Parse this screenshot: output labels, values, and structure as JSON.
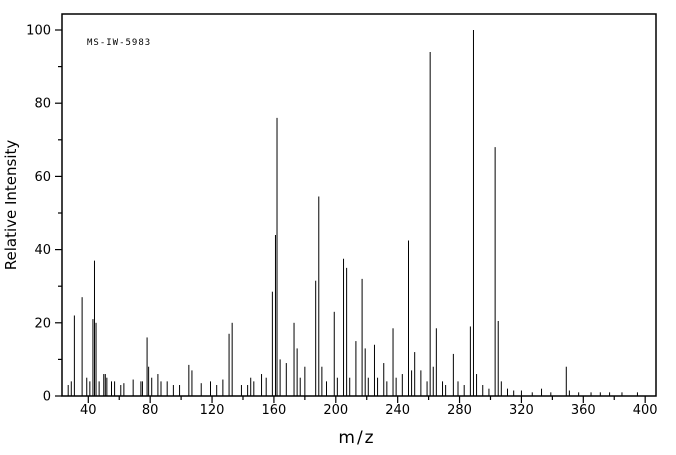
{
  "colors": {
    "stroke": "#000000",
    "background": "#ffffff",
    "text": "#000000"
  },
  "chart_data": {
    "type": "bar",
    "subtype": "mass-spectrum-stick-plot",
    "title": "",
    "spectrum_id": "MS-IW-5983",
    "xlabel": "m/z",
    "ylabel": "Relative Intensity",
    "xlim": [
      23,
      407
    ],
    "ylim": [
      0,
      100
    ],
    "x_major_ticks": [
      40,
      80,
      120,
      160,
      200,
      240,
      280,
      320,
      360,
      400
    ],
    "x_minor_step": 20,
    "y_major_ticks": [
      0,
      20,
      40,
      60,
      80,
      100
    ],
    "y_minor_step": 10,
    "grid": false,
    "legend": false,
    "peaks": [
      [
        27,
        3
      ],
      [
        29,
        4
      ],
      [
        31,
        22
      ],
      [
        36,
        27
      ],
      [
        39,
        5
      ],
      [
        41,
        4
      ],
      [
        43,
        21
      ],
      [
        44,
        37
      ],
      [
        45,
        20
      ],
      [
        47,
        4
      ],
      [
        50,
        6
      ],
      [
        51,
        6
      ],
      [
        52,
        5
      ],
      [
        55,
        4
      ],
      [
        57,
        4
      ],
      [
        61,
        3
      ],
      [
        63,
        3.5
      ],
      [
        69,
        4.5
      ],
      [
        74,
        4
      ],
      [
        75,
        4
      ],
      [
        78,
        16
      ],
      [
        79,
        8
      ],
      [
        81,
        5
      ],
      [
        85,
        6
      ],
      [
        87,
        4
      ],
      [
        91,
        4
      ],
      [
        95,
        3
      ],
      [
        99,
        3
      ],
      [
        105,
        8.5
      ],
      [
        107,
        7
      ],
      [
        113,
        3.5
      ],
      [
        119,
        4
      ],
      [
        123,
        3
      ],
      [
        127,
        4.5
      ],
      [
        131,
        17
      ],
      [
        133,
        20
      ],
      [
        139,
        3
      ],
      [
        143,
        3
      ],
      [
        145,
        5
      ],
      [
        147,
        4
      ],
      [
        152,
        6
      ],
      [
        155,
        5
      ],
      [
        159,
        28.5
      ],
      [
        161,
        44
      ],
      [
        162,
        76
      ],
      [
        164,
        10
      ],
      [
        168,
        9
      ],
      [
        173,
        20
      ],
      [
        175,
        13
      ],
      [
        177,
        5
      ],
      [
        180,
        8
      ],
      [
        187,
        31.5
      ],
      [
        189,
        54.5
      ],
      [
        191,
        8
      ],
      [
        194,
        4
      ],
      [
        199,
        23
      ],
      [
        201,
        5
      ],
      [
        205,
        37.5
      ],
      [
        207,
        35
      ],
      [
        209,
        5
      ],
      [
        213,
        15
      ],
      [
        217,
        32
      ],
      [
        219,
        13
      ],
      [
        221,
        5
      ],
      [
        225,
        14
      ],
      [
        227,
        5
      ],
      [
        231,
        9
      ],
      [
        233,
        4
      ],
      [
        237,
        18.5
      ],
      [
        239,
        5
      ],
      [
        243,
        6
      ],
      [
        247,
        42.5
      ],
      [
        249,
        7
      ],
      [
        251,
        12
      ],
      [
        255,
        7
      ],
      [
        259,
        4
      ],
      [
        261,
        94
      ],
      [
        263,
        8
      ],
      [
        265,
        18.5
      ],
      [
        269,
        4
      ],
      [
        271,
        3
      ],
      [
        276,
        11.5
      ],
      [
        279,
        4
      ],
      [
        283,
        3
      ],
      [
        287,
        19
      ],
      [
        289,
        100
      ],
      [
        291,
        6
      ],
      [
        295,
        3
      ],
      [
        299,
        2
      ],
      [
        303,
        68
      ],
      [
        305,
        20.5
      ],
      [
        307,
        4
      ],
      [
        311,
        2
      ],
      [
        315,
        1.5
      ],
      [
        320,
        1.5
      ],
      [
        327,
        1
      ],
      [
        333,
        2
      ],
      [
        339,
        1
      ],
      [
        349,
        8
      ],
      [
        351,
        1.5
      ],
      [
        357,
        1
      ],
      [
        365,
        1
      ],
      [
        371,
        1
      ],
      [
        377,
        1
      ],
      [
        385,
        1
      ],
      [
        395,
        1
      ]
    ]
  }
}
